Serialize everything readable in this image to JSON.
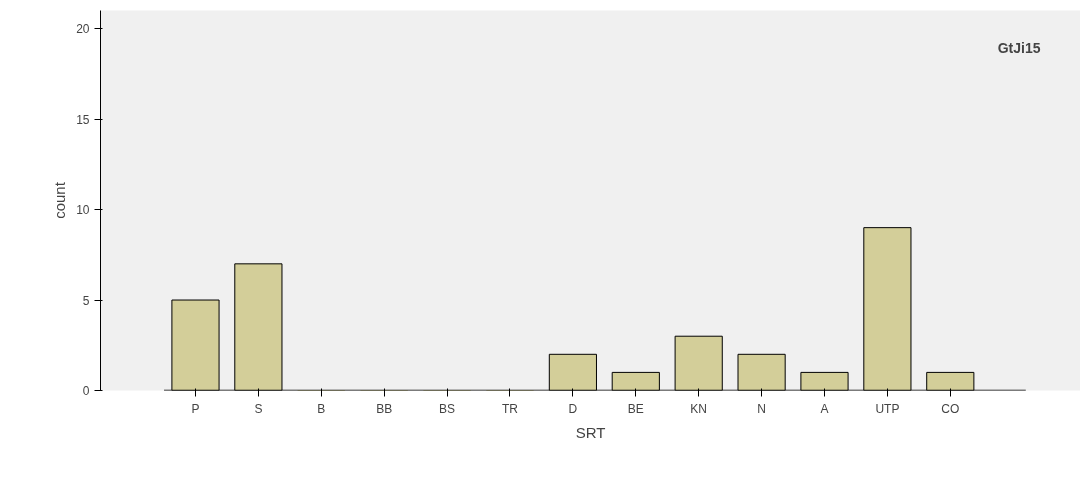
{
  "chart_data": {
    "type": "bar",
    "xlabel": "SRT",
    "ylabel": "count",
    "categories": [
      "P",
      "S",
      "B",
      "BB",
      "BS",
      "TR",
      "D",
      "BE",
      "KN",
      "N",
      "A",
      "UTP",
      "CO"
    ],
    "values": [
      5,
      7,
      0,
      0,
      0,
      0,
      2,
      1,
      3,
      2,
      1,
      9,
      1
    ],
    "color": "#d3ce99",
    "ylim": [
      0,
      21
    ],
    "yticks": [
      0,
      5,
      10,
      15,
      20
    ],
    "grid": false,
    "annotations": [
      "GtJi15"
    ]
  }
}
